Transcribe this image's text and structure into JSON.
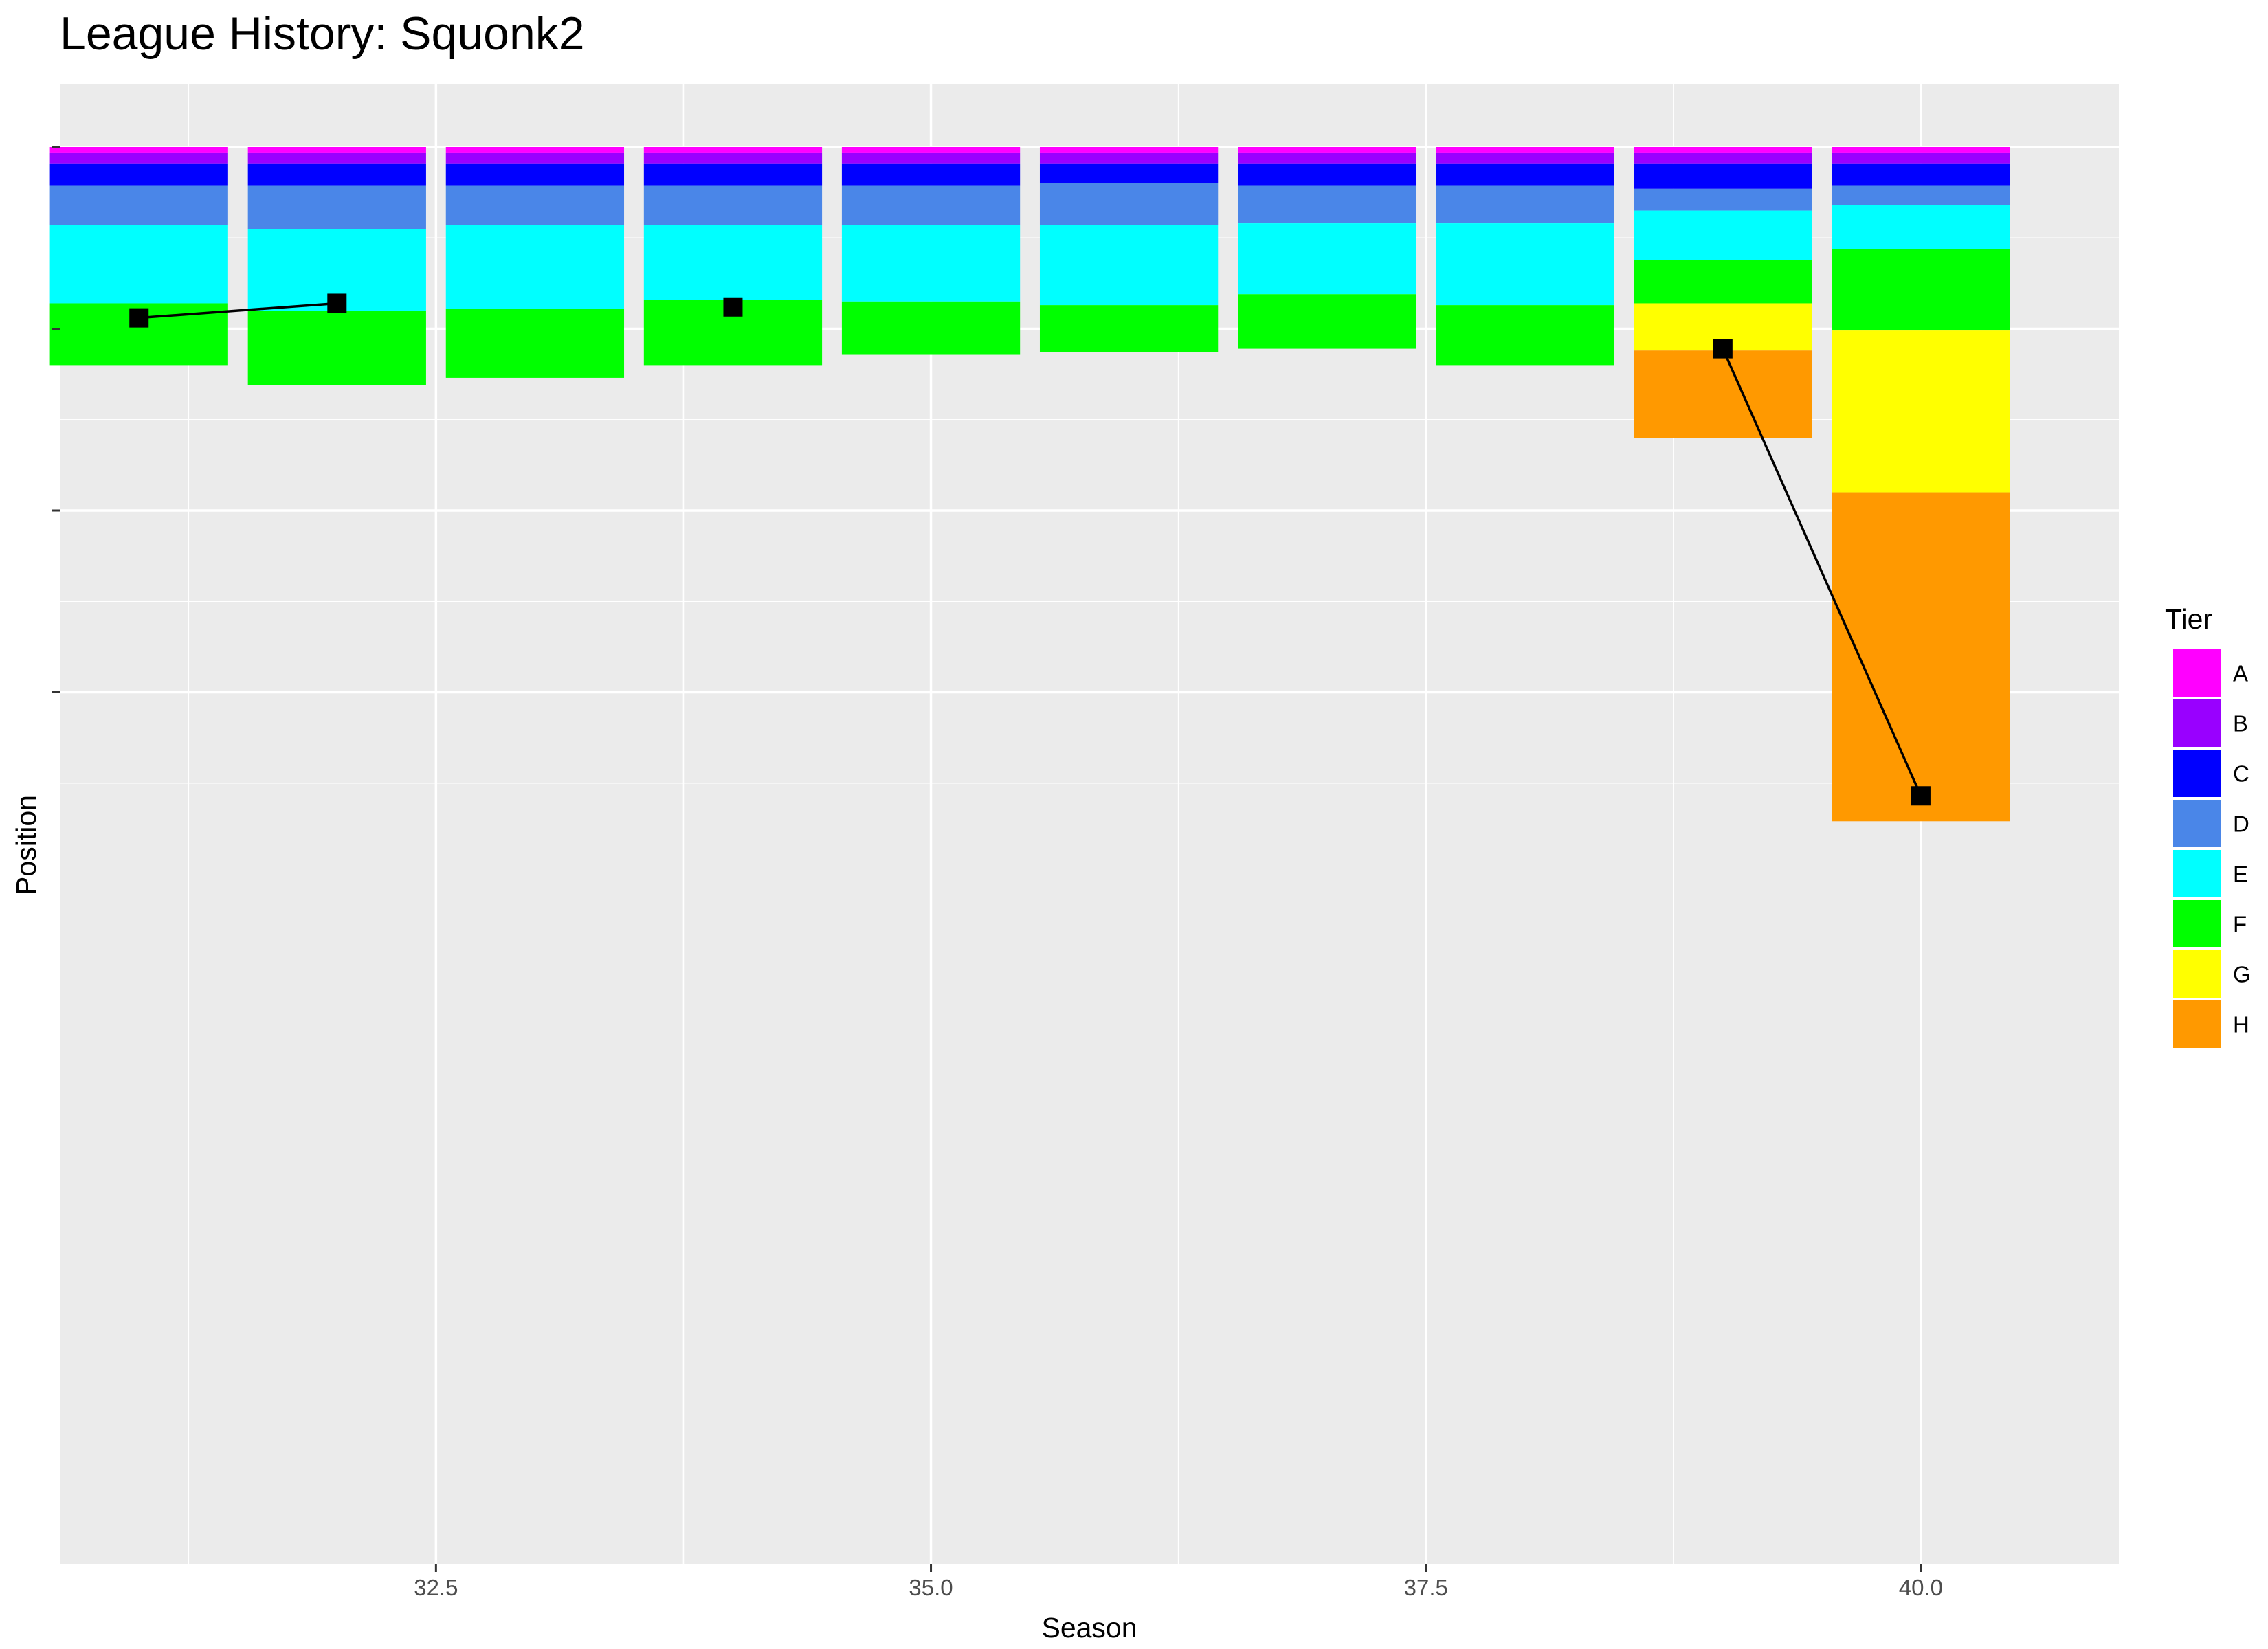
{
  "chart_data": {
    "type": "bar",
    "title": "League History: Squonk2",
    "xlabel": "Season",
    "ylabel": "Position",
    "xlim": [
      30.6,
      41.0
    ],
    "ylim": [
      0,
      195
    ],
    "x_ticks": [
      32.5,
      35.0,
      37.5,
      40.0
    ],
    "x_tick_labels": [
      "32.5",
      "35.0",
      "37.5",
      "40.0"
    ],
    "y_ticks": [
      0,
      50,
      100,
      150
    ],
    "y_tick_labels": [
      "",
      "",
      "",
      ""
    ],
    "y_reversed": true,
    "grid": true,
    "legend": {
      "title": "Tier",
      "placement": "right"
    },
    "tiers": [
      "A",
      "B",
      "C",
      "D",
      "E",
      "F",
      "G",
      "H"
    ],
    "tier_colors": {
      "A": "#FF00FF",
      "B": "#9900FF",
      "C": "#0000FF",
      "D": "#4A86E8",
      "E": "#00FFFF",
      "F": "#00FF00",
      "G": "#FFFF00",
      "H": "#FF9900"
    },
    "seasons": [
      {
        "season": 31,
        "tiers": {
          "A": 1.5,
          "B": 3,
          "C": 6,
          "D": 11,
          "E": 21.5,
          "F": 17
        }
      },
      {
        "season": 32,
        "tiers": {
          "A": 1.5,
          "B": 3,
          "C": 6,
          "D": 12,
          "E": 22.5,
          "F": 20.5
        }
      },
      {
        "season": 33,
        "tiers": {
          "A": 1.5,
          "B": 3,
          "C": 6,
          "D": 11,
          "E": 23,
          "F": 19
        }
      },
      {
        "season": 34,
        "tiers": {
          "A": 1.5,
          "B": 3,
          "C": 6,
          "D": 11,
          "E": 20.5,
          "F": 18
        }
      },
      {
        "season": 35,
        "tiers": {
          "A": 1.5,
          "B": 3,
          "C": 6,
          "D": 11,
          "E": 21,
          "F": 14.5
        }
      },
      {
        "season": 36,
        "tiers": {
          "A": 1.5,
          "B": 3,
          "C": 5.5,
          "D": 11.5,
          "E": 22,
          "F": 13
        }
      },
      {
        "season": 37,
        "tiers": {
          "A": 1.5,
          "B": 3,
          "C": 6,
          "D": 10.5,
          "E": 19.5,
          "F": 15
        }
      },
      {
        "season": 38,
        "tiers": {
          "A": 1.5,
          "B": 3,
          "C": 6,
          "D": 10.5,
          "E": 22.5,
          "F": 16.5
        }
      },
      {
        "season": 39,
        "tiers": {
          "A": 1.5,
          "B": 3,
          "C": 7,
          "D": 6,
          "E": 13.5,
          "F": 12,
          "G": 13,
          "H": 24
        }
      },
      {
        "season": 40,
        "tiers": {
          "A": 1.5,
          "B": 3,
          "C": 6,
          "D": 5.5,
          "E": 12,
          "F": 22.5,
          "G": 44.5,
          "H": 90.5
        }
      }
    ],
    "team_positions": [
      {
        "season": 31,
        "position": 47
      },
      {
        "season": 32,
        "position": 43
      },
      {
        "season": 34,
        "position": 44
      },
      {
        "season": 39,
        "position": 55.5
      },
      {
        "season": 40,
        "position": 178.5
      }
    ]
  }
}
